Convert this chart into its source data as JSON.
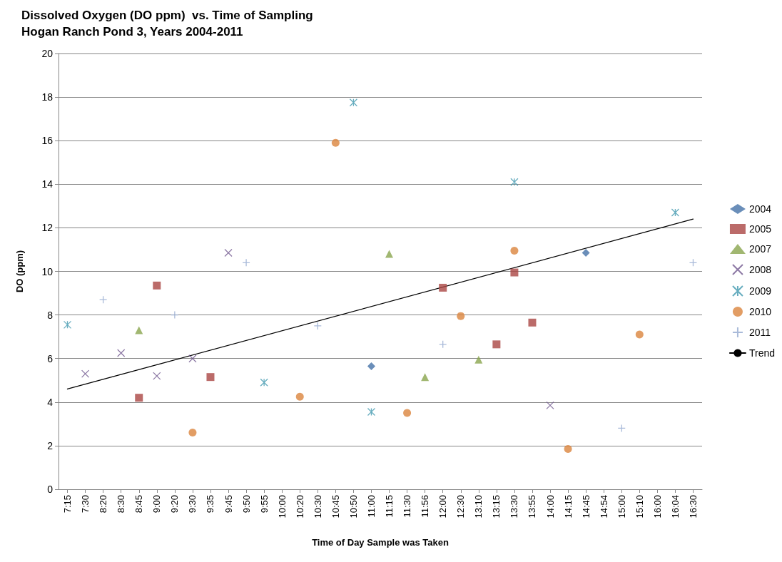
{
  "chart_data": {
    "type": "scatter",
    "title": "Dissolved Oxygen (DO ppm)  vs. Time of Sampling",
    "subtitle": "Hogan Ranch Pond 3, Years 2004-2011",
    "xlabel": "Time of Day Sample was Taken",
    "ylabel": "DO (ppm)",
    "categories": [
      "7:15",
      "7:30",
      "8:20",
      "8:30",
      "8:45",
      "9:00",
      "9:20",
      "9:30",
      "9:35",
      "9:45",
      "9:50",
      "9:55",
      "10:00",
      "10:20",
      "10:30",
      "10:45",
      "10:50",
      "11:00",
      "11:15",
      "11:30",
      "11:56",
      "12:00",
      "12:30",
      "13:10",
      "13:15",
      "13:30",
      "13:55",
      "14:00",
      "14:15",
      "14:45",
      "14:54",
      "15:00",
      "15:10",
      "16:00",
      "16:04",
      "16:30"
    ],
    "series": [
      {
        "name": "2004",
        "color": "#4572a7",
        "marker": "diamond",
        "x": [
          "11:00",
          "14:45"
        ],
        "values": [
          5.65,
          10.85
        ]
      },
      {
        "name": "2005",
        "color": "#aa4643",
        "marker": "square",
        "x": [
          "8:45",
          "9:00",
          "9:35",
          "12:00",
          "13:15",
          "13:30",
          "13:55"
        ],
        "values": [
          4.2,
          9.35,
          5.15,
          9.25,
          6.65,
          9.95,
          7.65
        ]
      },
      {
        "name": "2007",
        "color": "#89a54e",
        "marker": "triangle",
        "x": [
          "8:45",
          "11:15",
          "11:56",
          "13:10"
        ],
        "values": [
          7.3,
          10.8,
          5.15,
          5.95
        ]
      },
      {
        "name": "2008",
        "color": "#71588f",
        "marker": "cross",
        "x": [
          "7:30",
          "8:30",
          "9:00",
          "9:30",
          "9:45",
          "14:00"
        ],
        "values": [
          5.3,
          6.25,
          5.2,
          6.0,
          10.85,
          3.85
        ]
      },
      {
        "name": "2009",
        "color": "#4198af",
        "marker": "cross",
        "x": [
          "7:15",
          "9:55",
          "10:50",
          "11:00",
          "13:30",
          "16:04"
        ],
        "values": [
          7.55,
          4.9,
          17.75,
          3.55,
          14.1,
          12.7
        ]
      },
      {
        "name": "2010",
        "color": "#db843d",
        "marker": "circle",
        "x": [
          "9:30",
          "10:20",
          "10:45",
          "11:30",
          "12:30",
          "13:30",
          "14:15",
          "15:10"
        ],
        "values": [
          2.6,
          4.25,
          15.9,
          3.5,
          7.95,
          10.95,
          1.85,
          7.1
        ]
      },
      {
        "name": "2011",
        "color": "#93a9cf",
        "marker": "plus",
        "x": [
          "8:20",
          "9:20",
          "9:50",
          "10:30",
          "12:00",
          "15:00",
          "16:30"
        ],
        "values": [
          8.7,
          8.0,
          10.4,
          7.5,
          6.65,
          2.8,
          10.4
        ]
      },
      {
        "name": "Trend",
        "type": "line",
        "color": "#000000",
        "marker": "none",
        "line_style": "solid",
        "x": [
          "7:15",
          "16:30"
        ],
        "values": [
          4.6,
          12.4
        ]
      }
    ],
    "ylim": [
      0,
      20
    ],
    "yticks": [
      0,
      2,
      4,
      6,
      8,
      10,
      12,
      14,
      16,
      18,
      20
    ],
    "grid": "y",
    "legend": "right"
  }
}
